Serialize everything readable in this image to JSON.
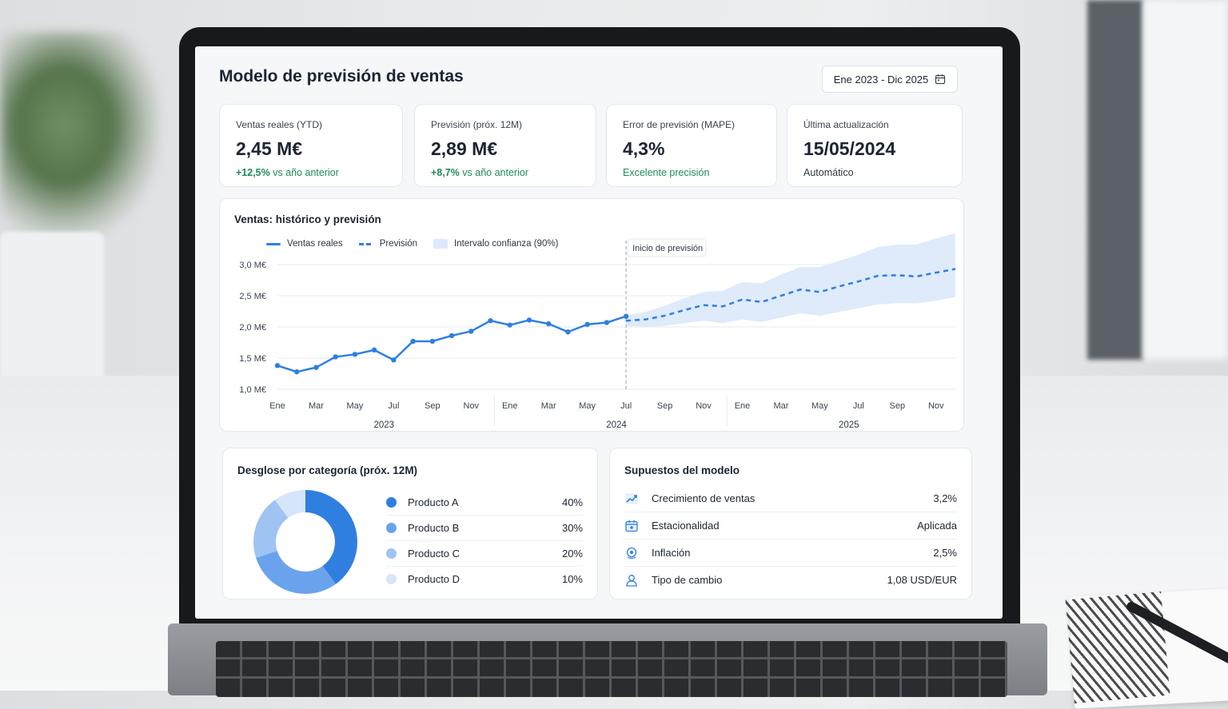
{
  "header": {
    "title": "Modelo de previsión de ventas",
    "date_range": "Ene 2023 - Dic 2025"
  },
  "kpis": [
    {
      "label": "Ventas reales (YTD)",
      "value": "2,45 M€",
      "delta": "+12,5%",
      "delta_text": " vs año anterior"
    },
    {
      "label": "Previsión (próx. 12M)",
      "value": "2,89 M€",
      "delta": "+8,7%",
      "delta_text": " vs año anterior"
    },
    {
      "label": "Error de previsión (MAPE)",
      "value": "4,3%",
      "delta": "",
      "delta_text": "Excelente precisión"
    },
    {
      "label": "Última actualización",
      "value": "15/05/2024",
      "delta": "",
      "delta_text": "Automático"
    }
  ],
  "chart": {
    "title": "Ventas: histórico y previsión",
    "legend": {
      "actual": "Ventas reales",
      "forecast": "Previsión",
      "band": "Intervalo confianza (90%)"
    },
    "forecast_start_label": "Inicio de previsión"
  },
  "chart_data": {
    "type": "line",
    "title": "Ventas: histórico y previsión",
    "ylim": [
      1.0,
      3.0
    ],
    "y_ticks": [
      "1,0 M€",
      "1,5 M€",
      "2,0 M€",
      "2,5 M€",
      "3,0 M€"
    ],
    "x_tick_labels": [
      "Ene",
      "Mar",
      "May",
      "Jul",
      "Sep",
      "Nov",
      "Ene",
      "Mar",
      "May",
      "Jul",
      "Sep",
      "Nov",
      "Ene",
      "Mar",
      "May",
      "Jul",
      "Sep",
      "Nov"
    ],
    "year_labels": [
      "2023",
      "2024",
      "2025"
    ],
    "grid": true,
    "legend_position": "top-left",
    "series": [
      {
        "name": "Ventas reales",
        "style": "solid",
        "color": "#2f7fe0",
        "x": [
          "2023-01",
          "2023-02",
          "2023-03",
          "2023-04",
          "2023-05",
          "2023-06",
          "2023-07",
          "2023-08",
          "2023-09",
          "2023-10",
          "2023-11",
          "2023-12",
          "2024-01",
          "2024-02",
          "2024-03",
          "2024-04",
          "2024-05",
          "2024-06",
          "2024-07"
        ],
        "values": [
          1.38,
          1.28,
          1.35,
          1.52,
          1.56,
          1.63,
          1.47,
          1.77,
          1.77,
          1.86,
          1.93,
          2.1,
          2.03,
          2.11,
          2.05,
          1.92,
          2.04,
          2.07,
          2.17
        ]
      },
      {
        "name": "Previsión",
        "style": "dashed",
        "color": "#2f7fe0",
        "x": [
          "2024-07",
          "2024-08",
          "2024-09",
          "2024-10",
          "2024-11",
          "2024-12",
          "2025-01",
          "2025-02",
          "2025-03",
          "2025-04",
          "2025-05",
          "2025-06",
          "2025-07",
          "2025-08",
          "2025-09",
          "2025-10",
          "2025-11",
          "2025-12"
        ],
        "values": [
          2.1,
          2.12,
          2.18,
          2.27,
          2.35,
          2.33,
          2.44,
          2.4,
          2.5,
          2.6,
          2.56,
          2.65,
          2.73,
          2.82,
          2.83,
          2.81,
          2.87,
          2.93
        ]
      },
      {
        "name": "Intervalo confianza (90%)",
        "style": "band",
        "color": "#dce8fb",
        "x": [
          "2024-07",
          "2024-08",
          "2024-09",
          "2024-10",
          "2024-11",
          "2024-12",
          "2025-01",
          "2025-02",
          "2025-03",
          "2025-04",
          "2025-05",
          "2025-06",
          "2025-07",
          "2025-08",
          "2025-09",
          "2025-10",
          "2025-11",
          "2025-12"
        ],
        "lower": [
          2.02,
          2.0,
          2.02,
          2.06,
          2.1,
          2.06,
          2.12,
          2.08,
          2.15,
          2.22,
          2.18,
          2.24,
          2.3,
          2.36,
          2.38,
          2.38,
          2.42,
          2.48
        ],
        "upper": [
          2.18,
          2.24,
          2.34,
          2.46,
          2.56,
          2.58,
          2.72,
          2.7,
          2.84,
          2.96,
          2.96,
          3.06,
          3.16,
          3.28,
          3.32,
          3.32,
          3.42,
          3.5
        ]
      }
    ]
  },
  "categories": {
    "title": "Desglose por categoría (próx. 12M)",
    "items": [
      {
        "name": "Producto A",
        "pct": "40%",
        "value": 40,
        "color": "#2f7fe0"
      },
      {
        "name": "Producto B",
        "pct": "30%",
        "value": 30,
        "color": "#6aa3ec"
      },
      {
        "name": "Producto C",
        "pct": "20%",
        "value": 20,
        "color": "#9fc3f3"
      },
      {
        "name": "Producto D",
        "pct": "10%",
        "value": 10,
        "color": "#d6e5fa"
      }
    ]
  },
  "assumptions": {
    "title": "Supuestos del modelo",
    "items": [
      {
        "name": "Crecimiento de ventas",
        "value": "3,2%",
        "icon": "trend-up-icon"
      },
      {
        "name": "Estacionalidad",
        "value": "Aplicada",
        "icon": "calendar-icon"
      },
      {
        "name": "Inflación",
        "value": "2,5%",
        "icon": "coin-icon"
      },
      {
        "name": "Tipo de cambio",
        "value": "1,08 USD/EUR",
        "icon": "person-icon"
      }
    ]
  }
}
